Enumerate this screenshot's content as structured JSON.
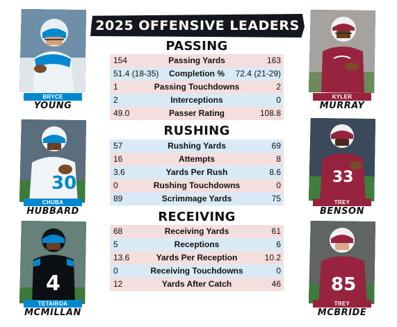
{
  "header": {
    "title": "2025 OFFENSIVE LEADERS"
  },
  "sections": [
    {
      "title": "PASSING",
      "rows": [
        {
          "left": "154",
          "stat": "Passing Yards",
          "right": "163"
        },
        {
          "left": "51.4 (18-35)",
          "stat": "Completion %",
          "right": "72.4 (21-29)"
        },
        {
          "left": "1",
          "stat": "Passing Touchdowns",
          "right": "2"
        },
        {
          "left": "2",
          "stat": "Interceptions",
          "right": "0"
        },
        {
          "left": "49.0",
          "stat": "Passer Rating",
          "right": "108.8"
        }
      ]
    },
    {
      "title": "RUSHING",
      "rows": [
        {
          "left": "57",
          "stat": "Rushing Yards",
          "right": "69"
        },
        {
          "left": "16",
          "stat": "Attempts",
          "right": "8"
        },
        {
          "left": "3.6",
          "stat": "Yards Per Rush",
          "right": "8.6"
        },
        {
          "left": "0",
          "stat": "Rushing Touchdowns",
          "right": "0"
        },
        {
          "left": "89",
          "stat": "Scrimmage Yards",
          "right": "75"
        }
      ]
    },
    {
      "title": "RECEIVING",
      "rows": [
        {
          "left": "68",
          "stat": "Receiving Yards",
          "right": "61"
        },
        {
          "left": "5",
          "stat": "Receptions",
          "right": "6"
        },
        {
          "left": "13.6",
          "stat": "Yards Per Reception",
          "right": "10.2"
        },
        {
          "left": "0",
          "stat": "Receiving Touchdowns",
          "right": "0"
        },
        {
          "left": "12",
          "stat": "Yards After Catch",
          "right": "46"
        }
      ]
    }
  ],
  "players": {
    "left": [
      {
        "first": "BRYCE",
        "last": "YOUNG"
      },
      {
        "first": "CHUBA",
        "last": "HUBBARD"
      },
      {
        "first": "TETAIROA",
        "last": "MCMILLAN"
      }
    ],
    "right": [
      {
        "first": "KYLER",
        "last": "MURRAY"
      },
      {
        "first": "TREY",
        "last": "BENSON"
      },
      {
        "first": "TREY",
        "last": "MCBRIDE"
      }
    ]
  },
  "jersey_numbers": {
    "hubbard": "30",
    "mcmillan": "4",
    "benson": "33",
    "mcbride": "85"
  },
  "colors": {
    "panthers_blue": "#0088ce",
    "cardinals_red": "#97233f",
    "banner": "#14171d",
    "row_pink": "#f5dede",
    "row_blue": "#d8eaf6"
  }
}
